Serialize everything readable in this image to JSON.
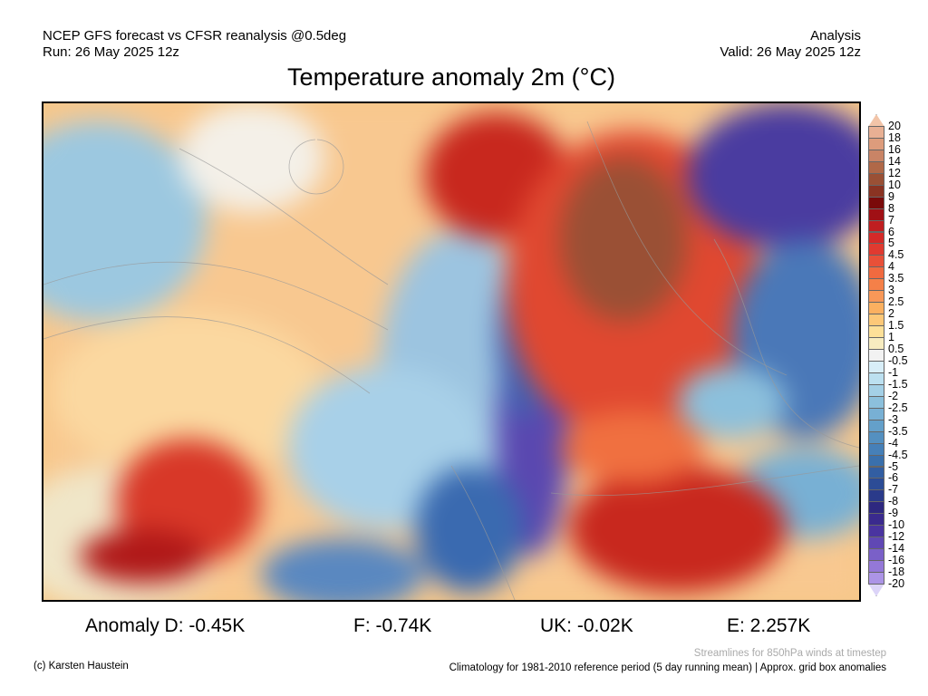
{
  "header": {
    "line1": "NCEP GFS forecast vs CFSR reanalysis @0.5deg",
    "line2": "Run: 26 May 2025 12z",
    "right1": "Analysis",
    "right2": "Valid: 26 May 2025 12z"
  },
  "title": "Temperature anomaly 2m (°C)",
  "anomalies": {
    "d": "Anomaly D: -0.45K",
    "f": "F: -0.74K",
    "uk": "UK: -0.02K",
    "e": "E: 2.257K"
  },
  "legend": {
    "labels": [
      "20",
      "18",
      "16",
      "14",
      "12",
      "10",
      "9",
      "8",
      "7",
      "6",
      "5",
      "4.5",
      "4",
      "3.5",
      "3",
      "2.5",
      "2",
      "1.5",
      "1",
      "0.5",
      "-0.5",
      "-1",
      "-1.5",
      "-2",
      "-2.5",
      "-3",
      "-3.5",
      "-4",
      "-4.5",
      "-5",
      "-6",
      "-7",
      "-8",
      "-9",
      "-10",
      "-12",
      "-14",
      "-16",
      "-18",
      "-20"
    ],
    "colors": [
      "#f2c4a8",
      "#e8b094",
      "#dd9c7c",
      "#c98466",
      "#b06848",
      "#9a5035",
      "#8a3322",
      "#7a0a0a",
      "#a01015",
      "#c01e20",
      "#d42a28",
      "#e03a30",
      "#e85038",
      "#f06a40",
      "#f58048",
      "#f89858",
      "#fbb060",
      "#fdc878",
      "#fde098",
      "#f7ecc0",
      "#f2f2f2",
      "#d8eef8",
      "#bce0f0",
      "#a4d0e6",
      "#8cc0dc",
      "#78b0d4",
      "#64a0ca",
      "#5490c0",
      "#4680b8",
      "#3a70ac",
      "#325ea2",
      "#2c4c96",
      "#2a3a8a",
      "#2e2880",
      "#3a2a8e",
      "#4a34a0",
      "#6048b4",
      "#7a60c8",
      "#9478d8",
      "#ac94e6",
      "#dcd4f8"
    ]
  },
  "footer": {
    "credit": "(c) Karsten Haustein",
    "streamlines": "Streamlines for 850hPa winds at timestep",
    "climatology": "Climatology for 1981-2010 reference period (5 day running mean) | Approx. grid box anomalies"
  }
}
